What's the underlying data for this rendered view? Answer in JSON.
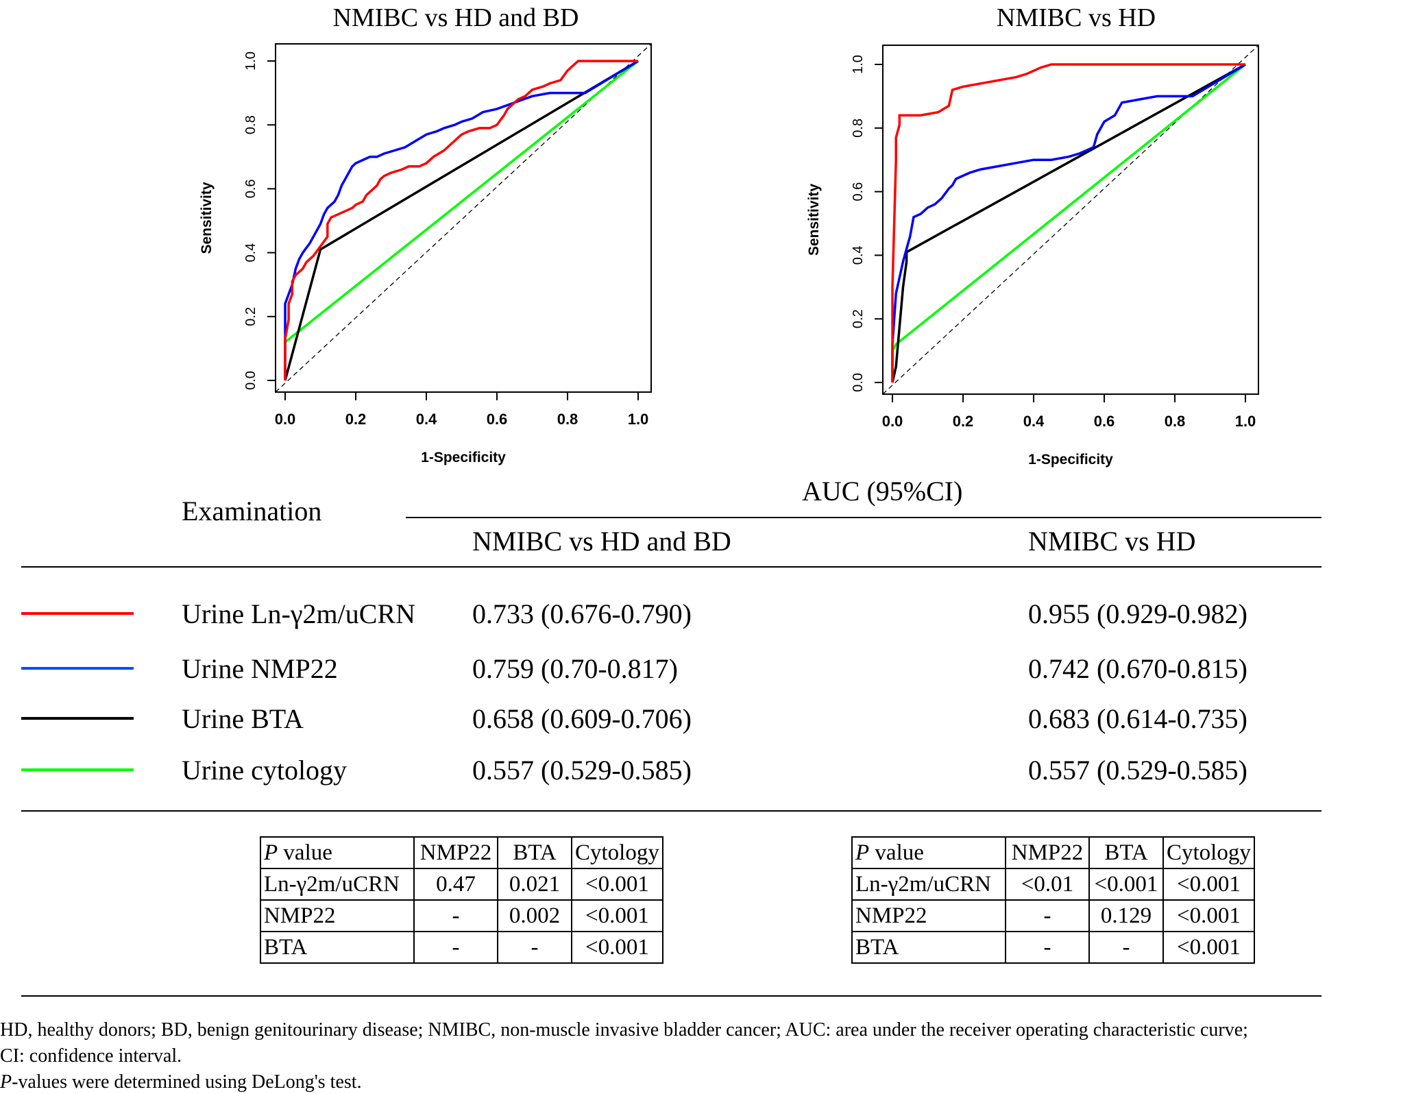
{
  "chart_data": [
    {
      "type": "line",
      "title": "NMIBC vs HD and BD",
      "xlabel": "1-Specificity",
      "ylabel": "Sensitivity",
      "xlim": [
        0,
        1
      ],
      "ylim": [
        0,
        1
      ],
      "xticks": [
        "0.0",
        "0.2",
        "0.4",
        "0.6",
        "0.8",
        "1.0"
      ],
      "yticks": [
        "0.0",
        "0.2",
        "0.4",
        "0.6",
        "0.8",
        "1.0"
      ],
      "diagonal": true,
      "series": [
        {
          "color": "#ff0000",
          "x": [
            0,
            0,
            0.01,
            0.01,
            0.02,
            0.02,
            0.03,
            0.05,
            0.06,
            0.08,
            0.1,
            0.12,
            0.12,
            0.13,
            0.15,
            0.19,
            0.2,
            0.22,
            0.23,
            0.24,
            0.25,
            0.26,
            0.27,
            0.28,
            0.3,
            0.33,
            0.35,
            0.38,
            0.4,
            0.42,
            0.45,
            0.48,
            0.5,
            0.52,
            0.55,
            0.58,
            0.6,
            0.62,
            0.63,
            0.65,
            0.66,
            0.68,
            0.7,
            0.73,
            0.75,
            0.78,
            0.8,
            0.82,
            0.83,
            0.85,
            1.0
          ],
          "y": [
            0,
            0.13,
            0.19,
            0.24,
            0.27,
            0.31,
            0.33,
            0.35,
            0.37,
            0.39,
            0.42,
            0.45,
            0.49,
            0.51,
            0.52,
            0.54,
            0.55,
            0.56,
            0.58,
            0.59,
            0.6,
            0.61,
            0.63,
            0.64,
            0.65,
            0.66,
            0.67,
            0.67,
            0.68,
            0.7,
            0.72,
            0.75,
            0.77,
            0.78,
            0.79,
            0.79,
            0.8,
            0.83,
            0.85,
            0.87,
            0.88,
            0.89,
            0.91,
            0.92,
            0.93,
            0.94,
            0.97,
            0.99,
            1.0,
            1.0,
            1.0
          ]
        },
        {
          "color": "#0000ff",
          "x": [
            0,
            0,
            0.01,
            0.02,
            0.03,
            0.04,
            0.05,
            0.07,
            0.08,
            0.09,
            0.1,
            0.11,
            0.12,
            0.14,
            0.15,
            0.16,
            0.17,
            0.18,
            0.19,
            0.2,
            0.22,
            0.24,
            0.26,
            0.28,
            0.31,
            0.34,
            0.37,
            0.4,
            0.43,
            0.45,
            0.48,
            0.5,
            0.53,
            0.56,
            0.6,
            0.65,
            0.7,
            0.75,
            0.8,
            0.85,
            1.0
          ],
          "y": [
            0,
            0.24,
            0.27,
            0.3,
            0.35,
            0.38,
            0.4,
            0.43,
            0.45,
            0.47,
            0.49,
            0.52,
            0.54,
            0.56,
            0.58,
            0.61,
            0.63,
            0.65,
            0.67,
            0.68,
            0.69,
            0.7,
            0.7,
            0.71,
            0.72,
            0.73,
            0.75,
            0.77,
            0.78,
            0.79,
            0.8,
            0.81,
            0.82,
            0.84,
            0.85,
            0.87,
            0.89,
            0.9,
            0.9,
            0.9,
            1.0
          ]
        },
        {
          "color": "#000000",
          "x": [
            0,
            0.1,
            1.0
          ],
          "y": [
            0,
            0.41,
            1.0
          ]
        },
        {
          "color": "#00ff00",
          "x": [
            0,
            0,
            1.0
          ],
          "y": [
            0,
            0.12,
            1.0
          ]
        }
      ]
    },
    {
      "type": "line",
      "title": "NMIBC vs HD",
      "xlabel": "1-Specificity",
      "ylabel": "Sensitivity",
      "xlim": [
        0,
        1
      ],
      "ylim": [
        0,
        1
      ],
      "xticks": [
        "0.0",
        "0.2",
        "0.4",
        "0.6",
        "0.8",
        "1.0"
      ],
      "yticks": [
        "0.0",
        "0.2",
        "0.4",
        "0.6",
        "0.8",
        "1.0"
      ],
      "diagonal": true,
      "series": [
        {
          "color": "#ff0000",
          "x": [
            0,
            0,
            0.01,
            0.01,
            0.02,
            0.02,
            0.04,
            0.08,
            0.13,
            0.16,
            0.17,
            0.2,
            0.25,
            0.3,
            0.35,
            0.38,
            0.4,
            0.42,
            0.45,
            0.46,
            1.0
          ],
          "y": [
            0,
            0.3,
            0.7,
            0.77,
            0.81,
            0.84,
            0.84,
            0.84,
            0.85,
            0.87,
            0.92,
            0.93,
            0.94,
            0.95,
            0.96,
            0.97,
            0.98,
            0.99,
            1.0,
            1.0,
            1.0
          ]
        },
        {
          "color": "#0000ff",
          "x": [
            0,
            0,
            0.01,
            0.03,
            0.04,
            0.05,
            0.06,
            0.08,
            0.1,
            0.12,
            0.14,
            0.16,
            0.17,
            0.18,
            0.2,
            0.22,
            0.25,
            0.3,
            0.35,
            0.4,
            0.45,
            0.5,
            0.53,
            0.55,
            0.57,
            0.58,
            0.6,
            0.63,
            0.65,
            0.7,
            0.75,
            0.8,
            0.85,
            1.0
          ],
          "y": [
            0,
            0.12,
            0.28,
            0.38,
            0.42,
            0.46,
            0.52,
            0.53,
            0.55,
            0.56,
            0.58,
            0.61,
            0.62,
            0.64,
            0.65,
            0.66,
            0.67,
            0.68,
            0.69,
            0.7,
            0.7,
            0.71,
            0.72,
            0.73,
            0.74,
            0.78,
            0.82,
            0.84,
            0.88,
            0.89,
            0.9,
            0.9,
            0.9,
            1.0
          ]
        },
        {
          "color": "#000000",
          "x": [
            0,
            0.01,
            0.03,
            0.04,
            0.04,
            1.0
          ],
          "y": [
            0,
            0.05,
            0.3,
            0.38,
            0.41,
            1.0
          ]
        },
        {
          "color": "#00ff00",
          "x": [
            0,
            0,
            0.01,
            1.0
          ],
          "y": [
            0,
            0.1,
            0.12,
            1.0
          ]
        }
      ]
    }
  ],
  "table": {
    "examination_header": "Examination",
    "auc_header": "AUC (95%CI)",
    "col1_header": "NMIBC vs HD and BD",
    "col2_header": "NMIBC vs HD",
    "rows": [
      {
        "color": "#ff0000",
        "label": "Urine Ln-γ2m/uCRN",
        "auc1": "0.733 (0.676-0.790)",
        "auc2": "0.955 (0.929-0.982)"
      },
      {
        "color": "#0050ff",
        "label": "Urine NMP22",
        "auc1": "0.759 (0.70-0.817)",
        "auc2": "0.742 (0.670-0.815)"
      },
      {
        "color": "#000000",
        "label": "Urine BTA",
        "auc1": "0.658 (0.609-0.706)",
        "auc2": "0.683 (0.614-0.735)"
      },
      {
        "color": "#00ff00",
        "label": "Urine cytology",
        "auc1": "0.557 (0.529-0.585)",
        "auc2": "0.557 (0.529-0.585)"
      }
    ]
  },
  "pvalue_tables": [
    {
      "header": {
        "p": "P",
        "value": " value",
        "c1": "NMP22",
        "c2": "BTA",
        "c3": "Cytology"
      },
      "rows": [
        {
          "label": "Ln-γ2m/uCRN",
          "v1": "0.47",
          "v2": "0.021",
          "v3": "<0.001"
        },
        {
          "label": "NMP22",
          "v1": "-",
          "v2": "0.002",
          "v3": "<0.001"
        },
        {
          "label": "BTA",
          "v1": "-",
          "v2": "-",
          "v3": "<0.001"
        }
      ]
    },
    {
      "header": {
        "p": "P",
        "value": " value",
        "c1": "NMP22",
        "c2": "BTA",
        "c3": "Cytology"
      },
      "rows": [
        {
          "label": "Ln-γ2m/uCRN",
          "v1": "<0.01",
          "v2": "<0.001",
          "v3": "<0.001"
        },
        {
          "label": "NMP22",
          "v1": "-",
          "v2": "0.129",
          "v3": "<0.001"
        },
        {
          "label": "BTA",
          "v1": "-",
          "v2": "-",
          "v3": "<0.001"
        }
      ]
    }
  ],
  "footnote": {
    "line1": "HD, healthy donors; BD, benign genitourinary disease; NMIBC, non-muscle invasive bladder cancer; AUC: area under the receiver operating characteristic curve;",
    "line2": "CI: confidence interval.",
    "line3_italic": "P",
    "line3_rest": "-values were determined using DeLong's test."
  }
}
